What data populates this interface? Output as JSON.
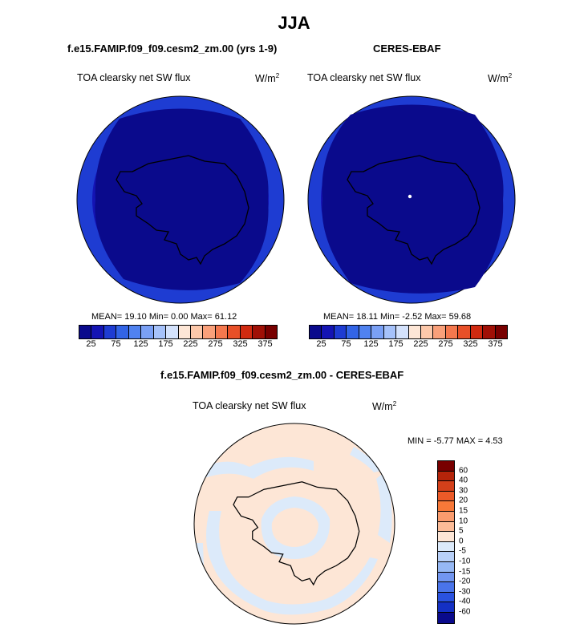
{
  "title": "JJA",
  "panels": [
    {
      "title": "f.e15.FAMIP.f09_f09.cesm2_zm.00 (yrs 1-9)",
      "variable": "TOA clearsky net SW flux",
      "units": "W/m",
      "units_sup": "2",
      "stats": "MEAN=  19.10  Min=   0.00  Max=  61.12"
    },
    {
      "title": "CERES-EBAF",
      "variable": "TOA clearsky net SW flux",
      "units": "W/m",
      "units_sup": "2",
      "stats": "MEAN=  18.11  Min=  -2.52  Max=  59.68"
    }
  ],
  "diff_panel": {
    "title": "f.e15.FAMIP.f09_f09.cesm2_zm.00 - CERES-EBAF",
    "variable": "TOA clearsky net SW flux",
    "units": "W/m",
    "units_sup": "2",
    "stats": "MIN =  -5.77 MAX =    4.53"
  },
  "colorbar_abs": {
    "colors": [
      "#0a0a8c",
      "#1414b4",
      "#1e3cd2",
      "#3264e6",
      "#5082f0",
      "#7aa0f5",
      "#a6c2fa",
      "#d4e2fc",
      "#fde6d6",
      "#fcc8aa",
      "#f9a07a",
      "#f4784e",
      "#e85028",
      "#d02a10",
      "#a01006",
      "#780000"
    ],
    "tick_labels": [
      "25",
      "75",
      "125",
      "175",
      "225",
      "275",
      "325",
      "375"
    ]
  },
  "colorbar_diff": {
    "colors": [
      "#780000",
      "#b4240a",
      "#d4401a",
      "#ec5a28",
      "#f87838",
      "#fa9c6e",
      "#fcbc98",
      "#fde6d6",
      "#dceafa",
      "#b8d0f8",
      "#96b8f4",
      "#7296f0",
      "#4a74ea",
      "#2a52e0",
      "#1430c4",
      "#0a0a8c"
    ],
    "tick_labels": [
      "60",
      "40",
      "30",
      "20",
      "15",
      "10",
      "5",
      "0",
      "-5",
      "-10",
      "-15",
      "-20",
      "-30",
      "-40",
      "-60"
    ]
  },
  "map_colors": {
    "ocean_outer": "#1e3cd2",
    "ocean_mid": "#1414b4",
    "interior": "#0a0a8c",
    "diff_positive": "#fde6d6",
    "diff_negative": "#dceafa"
  }
}
